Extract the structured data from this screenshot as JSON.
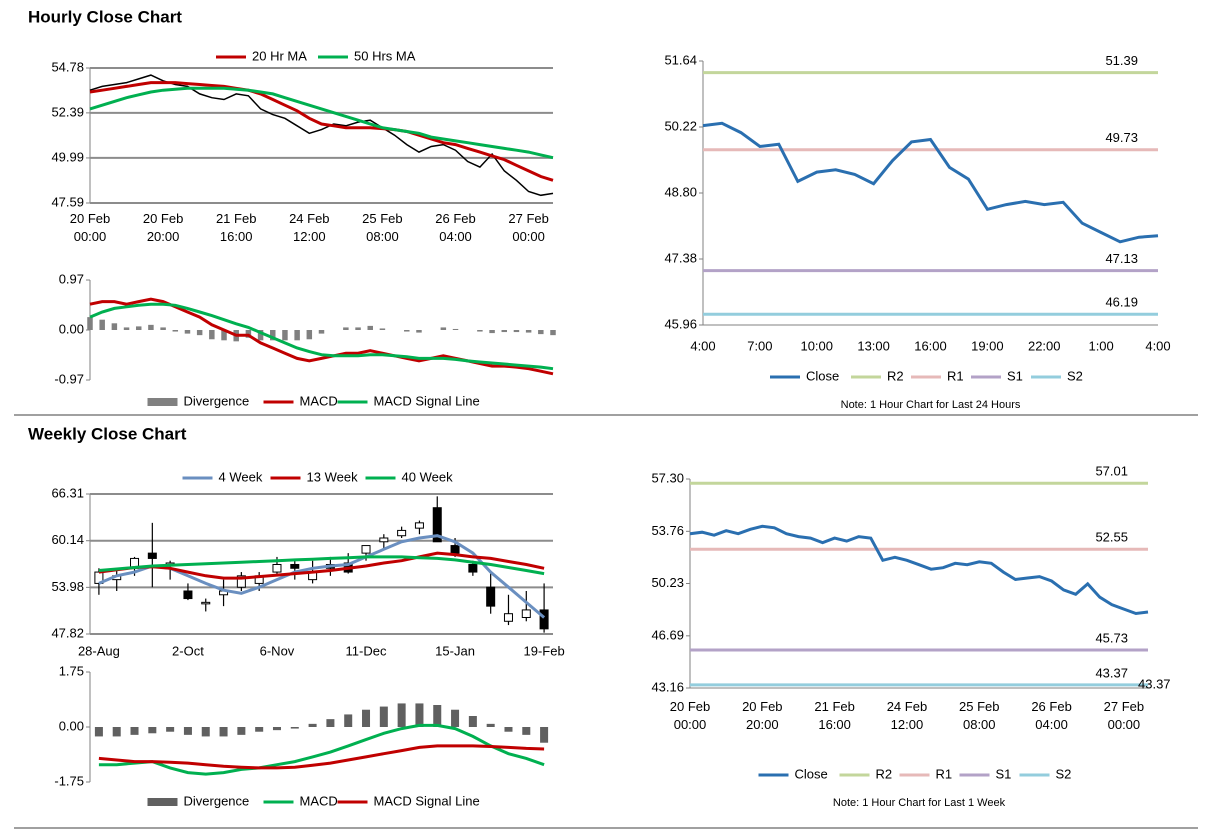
{
  "section_titles": [
    "Hourly Close Chart",
    "Weekly Close Chart"
  ],
  "chart_data": [
    {
      "type": "price",
      "ylim": [
        47.59,
        54.78
      ],
      "yticks": [
        47.59,
        49.99,
        52.39,
        54.78
      ],
      "grid": true,
      "categories": [
        [
          "20 Feb",
          "00:00"
        ],
        null,
        null,
        null,
        null,
        null,
        [
          "20 Feb",
          "20:00"
        ],
        null,
        null,
        null,
        null,
        null,
        [
          "21 Feb",
          "16:00"
        ],
        null,
        null,
        null,
        null,
        null,
        [
          "24 Feb",
          "12:00"
        ],
        null,
        null,
        null,
        null,
        null,
        [
          "25 Feb",
          "08:00"
        ],
        null,
        null,
        null,
        null,
        null,
        [
          "26 Feb",
          "04:00"
        ],
        null,
        null,
        null,
        null,
        null,
        [
          "27 Feb",
          "00:00"
        ],
        null,
        null
      ],
      "values": [
        53.6,
        53.8,
        53.9,
        54.0,
        54.2,
        54.4,
        54.1,
        53.9,
        53.8,
        53.4,
        53.2,
        53.1,
        53.4,
        53.3,
        52.6,
        52.3,
        52.1,
        51.7,
        51.3,
        51.5,
        51.8,
        51.7,
        51.9,
        52.0,
        51.6,
        51.2,
        50.7,
        50.3,
        50.6,
        50.7,
        50.4,
        49.8,
        49.5,
        50.2,
        49.3,
        48.8,
        48.2,
        48.0,
        48.1
      ],
      "series": [
        {
          "name": "20 Hr MA",
          "color": "#c00000",
          "values": [
            53.5,
            53.6,
            53.7,
            53.8,
            53.9,
            54.0,
            54.0,
            54.0,
            53.95,
            53.9,
            53.85,
            53.8,
            53.7,
            53.6,
            53.4,
            53.1,
            52.8,
            52.5,
            52.1,
            51.8,
            51.7,
            51.6,
            51.6,
            51.6,
            51.55,
            51.5,
            51.4,
            51.2,
            51.0,
            50.8,
            50.7,
            50.5,
            50.3,
            50.1,
            49.9,
            49.6,
            49.3,
            49.0,
            48.8
          ]
        },
        {
          "name": "50 Hrs MA",
          "color": "#00b050",
          "values": [
            52.6,
            52.8,
            53.0,
            53.2,
            53.35,
            53.5,
            53.6,
            53.65,
            53.7,
            53.7,
            53.7,
            53.7,
            53.65,
            53.6,
            53.5,
            53.4,
            53.2,
            53.0,
            52.8,
            52.6,
            52.4,
            52.2,
            52.0,
            51.8,
            51.6,
            51.5,
            51.4,
            51.3,
            51.1,
            51.0,
            50.9,
            50.8,
            50.7,
            50.6,
            50.5,
            50.4,
            50.3,
            50.15,
            50.0
          ]
        }
      ]
    },
    {
      "type": "macd",
      "ylim": [
        -0.97,
        0.97
      ],
      "yticks": [
        -0.97,
        {
          "value": 0,
          "label": "0.00"
        },
        0.97
      ],
      "series": [
        {
          "name": "Divergence",
          "color": "#808080",
          "type": "bar",
          "values": [
            0.25,
            0.2,
            0.13,
            0.05,
            0.07,
            0.1,
            0.05,
            -0.03,
            -0.07,
            -0.1,
            -0.18,
            -0.2,
            -0.22,
            -0.15,
            -0.2,
            -0.2,
            -0.2,
            -0.2,
            -0.18,
            -0.07,
            0,
            0.05,
            0.05,
            0.08,
            0.03,
            0,
            -0.03,
            -0.05,
            0,
            0.05,
            0.02,
            0,
            -0.03,
            -0.06,
            -0.04,
            -0.04,
            -0.05,
            -0.08,
            -0.1
          ]
        },
        {
          "name": "MACD",
          "color": "#c00000",
          "values": [
            0.5,
            0.55,
            0.55,
            0.5,
            0.55,
            0.6,
            0.55,
            0.45,
            0.35,
            0.25,
            0.1,
            0.0,
            -0.1,
            -0.1,
            -0.25,
            -0.35,
            -0.45,
            -0.55,
            -0.6,
            -0.55,
            -0.5,
            -0.45,
            -0.45,
            -0.4,
            -0.45,
            -0.5,
            -0.55,
            -0.6,
            -0.55,
            -0.5,
            -0.55,
            -0.6,
            -0.65,
            -0.7,
            -0.7,
            -0.72,
            -0.75,
            -0.8,
            -0.85
          ]
        },
        {
          "name": "MACD Signal Line",
          "color": "#00b050",
          "values": [
            0.25,
            0.35,
            0.42,
            0.45,
            0.48,
            0.5,
            0.5,
            0.48,
            0.42,
            0.35,
            0.28,
            0.2,
            0.12,
            0.05,
            -0.05,
            -0.15,
            -0.25,
            -0.35,
            -0.42,
            -0.48,
            -0.5,
            -0.5,
            -0.5,
            -0.48,
            -0.48,
            -0.5,
            -0.52,
            -0.55,
            -0.55,
            -0.55,
            -0.57,
            -0.6,
            -0.62,
            -0.64,
            -0.66,
            -0.68,
            -0.7,
            -0.72,
            -0.75
          ]
        }
      ]
    },
    {
      "type": "levels",
      "ylim": [
        45.96,
        51.64
      ],
      "yticks": [
        45.96,
        47.38,
        {
          "value": 48.8,
          "label": "48.80"
        },
        50.22,
        51.64
      ],
      "categories": [
        "4:00",
        null,
        null,
        "7:00",
        null,
        null,
        "10:00",
        null,
        null,
        "13:00",
        null,
        null,
        "16:00",
        null,
        null,
        "19:00",
        null,
        null,
        "22:00",
        null,
        null,
        "1:00",
        null,
        null,
        "4:00"
      ],
      "series": [
        {
          "name": "Close",
          "color": "#2a6fb0",
          "values": [
            50.25,
            50.3,
            50.1,
            49.8,
            49.85,
            49.05,
            49.25,
            49.3,
            49.2,
            49.0,
            49.5,
            49.9,
            49.95,
            49.35,
            49.1,
            48.45,
            48.55,
            48.62,
            48.55,
            48.6,
            48.15,
            47.95,
            47.75,
            47.85,
            47.88
          ]
        }
      ],
      "levels": [
        {
          "name": "R2",
          "color": "#c3d69b",
          "value": 51.39
        },
        {
          "name": "R1",
          "color": "#e6b9b8",
          "value": 49.73
        },
        {
          "name": "S1",
          "color": "#b3a2c7",
          "value": 47.13
        },
        {
          "name": "S2",
          "color": "#93cddd",
          "value": 46.19
        }
      ],
      "note": "Note: 1 Hour Chart for Last 24 Hours"
    },
    {
      "type": "candlestick",
      "ylim": [
        47.82,
        66.31
      ],
      "yticks": [
        47.82,
        53.98,
        60.14,
        66.31
      ],
      "grid": true,
      "categories": [
        "28-Aug",
        null,
        null,
        null,
        null,
        "2-Oct",
        null,
        null,
        null,
        null,
        "6-Nov",
        null,
        null,
        null,
        null,
        "11-Dec",
        null,
        null,
        null,
        null,
        "15-Jan",
        null,
        null,
        null,
        null,
        "19-Feb"
      ],
      "open": [
        54.5,
        55,
        56.5,
        58.5,
        57,
        53.5,
        52,
        53,
        54,
        54.5,
        56,
        57,
        55,
        57,
        57.2,
        58.5,
        60,
        60.8,
        61.8,
        64.5,
        59.5,
        57,
        54,
        49.5,
        50,
        51
      ],
      "high": [
        56.5,
        56.5,
        58,
        62.5,
        57.5,
        54.5,
        52.5,
        55,
        56,
        56,
        58,
        57.5,
        57.5,
        58,
        58.5,
        59.5,
        61,
        62,
        62.8,
        66,
        60.5,
        57.5,
        56,
        53,
        53.5,
        54.5
      ],
      "low": [
        53,
        53.5,
        55.5,
        54,
        55,
        52.3,
        50.8,
        51.5,
        53.5,
        53.5,
        55.5,
        55,
        54.5,
        55.5,
        55.8,
        57.5,
        59,
        60.5,
        61,
        60,
        58,
        55.5,
        50.5,
        49,
        49.5,
        48
      ],
      "close": [
        56,
        55.5,
        57.8,
        57.8,
        57.2,
        52.5,
        52,
        53.5,
        55.5,
        55.5,
        57,
        56.5,
        56,
        56.5,
        56,
        59.5,
        60.5,
        61.5,
        62.5,
        60,
        58.5,
        56,
        51.5,
        50.5,
        51,
        48.5
      ],
      "series": [
        {
          "name": "4 Week",
          "color": "#6a8fc0",
          "values": [
            54.5,
            55.5,
            56,
            56.8,
            56.5,
            55.5,
            54.5,
            53.6,
            53.2,
            54,
            55,
            56,
            56.5,
            56.8,
            57,
            58,
            59,
            60,
            60.5,
            60.8,
            60,
            58.5,
            56,
            54,
            52,
            50
          ]
        },
        {
          "name": "13 Week",
          "color": "#c00000",
          "values": [
            56,
            56.3,
            56.6,
            56.7,
            56.5,
            56,
            55.5,
            55.2,
            55.2,
            55.4,
            55.6,
            55.8,
            56,
            56.2,
            56.5,
            56.8,
            57.2,
            57.5,
            58,
            58.5,
            58.3,
            58,
            57.8,
            57.4,
            57,
            56.5
          ]
        },
        {
          "name": "40 Week",
          "color": "#00b050",
          "values": [
            56.2,
            56.4,
            56.6,
            56.8,
            56.9,
            57,
            57.1,
            57.2,
            57.3,
            57.4,
            57.5,
            57.6,
            57.7,
            57.8,
            57.9,
            58,
            58,
            58,
            57.9,
            57.8,
            57.6,
            57.3,
            57,
            56.6,
            56.2,
            55.8
          ]
        }
      ]
    },
    {
      "type": "macd",
      "band": true,
      "ylim": [
        -1.75,
        1.75
      ],
      "yticks": [
        -1.75,
        {
          "value": 0,
          "label": "0.00"
        },
        1.75
      ],
      "series": [
        {
          "name": "Divergence",
          "color": "#606060",
          "type": "bar",
          "values": [
            -0.3,
            -0.3,
            -0.25,
            -0.2,
            -0.15,
            -0.25,
            -0.3,
            -0.3,
            -0.25,
            -0.15,
            -0.1,
            -0.05,
            0.1,
            0.25,
            0.4,
            0.55,
            0.65,
            0.75,
            0.75,
            0.7,
            0.55,
            0.35,
            0.1,
            -0.15,
            -0.25,
            -0.5
          ]
        },
        {
          "name": "MACD",
          "color": "#00b050",
          "values": [
            -1.2,
            -1.2,
            -1.15,
            -1.1,
            -1.3,
            -1.45,
            -1.5,
            -1.45,
            -1.35,
            -1.3,
            -1.2,
            -1.1,
            -0.95,
            -0.8,
            -0.6,
            -0.4,
            -0.2,
            -0.05,
            0.05,
            0.05,
            -0.05,
            -0.3,
            -0.6,
            -0.85,
            -1.0,
            -1.2
          ]
        },
        {
          "name": "MACD Signal Line",
          "color": "#c00000",
          "values": [
            -1.0,
            -1.05,
            -1.1,
            -1.1,
            -1.12,
            -1.15,
            -1.2,
            -1.25,
            -1.28,
            -1.3,
            -1.3,
            -1.28,
            -1.22,
            -1.15,
            -1.05,
            -0.95,
            -0.85,
            -0.75,
            -0.65,
            -0.6,
            -0.6,
            -0.6,
            -0.62,
            -0.65,
            -0.68,
            -0.7
          ]
        }
      ]
    },
    {
      "type": "levels",
      "ylim": [
        43.16,
        {
          "value": 57.3,
          "label": "57.30"
        }
      ],
      "yticks": [
        43.16,
        46.69,
        50.23,
        53.76,
        {
          "value": 57.3,
          "label": "57.30"
        }
      ],
      "categories": [
        [
          "20 Feb",
          "00:00"
        ],
        null,
        null,
        null,
        null,
        null,
        [
          "20 Feb",
          "20:00"
        ],
        null,
        null,
        null,
        null,
        null,
        [
          "21 Feb",
          "16:00"
        ],
        null,
        null,
        null,
        null,
        null,
        [
          "24 Feb",
          "12:00"
        ],
        null,
        null,
        null,
        null,
        null,
        [
          "25 Feb",
          "08:00"
        ],
        null,
        null,
        null,
        null,
        null,
        [
          "26 Feb",
          "04:00"
        ],
        null,
        null,
        null,
        null,
        null,
        [
          "27 Feb",
          "00:00"
        ],
        null,
        null
      ],
      "series": [
        {
          "name": "Close",
          "color": "#2a6fb0",
          "values": [
            53.6,
            53.7,
            53.5,
            53.8,
            53.6,
            53.9,
            54.1,
            54.0,
            53.6,
            53.4,
            53.3,
            53.0,
            53.3,
            53.1,
            53.4,
            53.3,
            51.8,
            52.0,
            51.8,
            51.5,
            51.2,
            51.3,
            51.6,
            51.5,
            51.7,
            51.6,
            51.0,
            50.5,
            50.6,
            50.7,
            50.4,
            49.8,
            49.5,
            50.2,
            49.3,
            48.8,
            48.5,
            48.2,
            48.3
          ]
        }
      ],
      "levels": [
        {
          "name": "R2",
          "color": "#c3d69b",
          "value": 57.01
        },
        {
          "name": "R1",
          "color": "#e6b9b8",
          "value": 52.55
        },
        {
          "name": "S1",
          "color": "#b3a2c7",
          "value": 45.73
        },
        {
          "name": "S2",
          "color": "#93cddd",
          "value": 43.37,
          "right_label": true
        }
      ],
      "note": "Note: 1 Hour Chart for Last 1 Week"
    }
  ]
}
